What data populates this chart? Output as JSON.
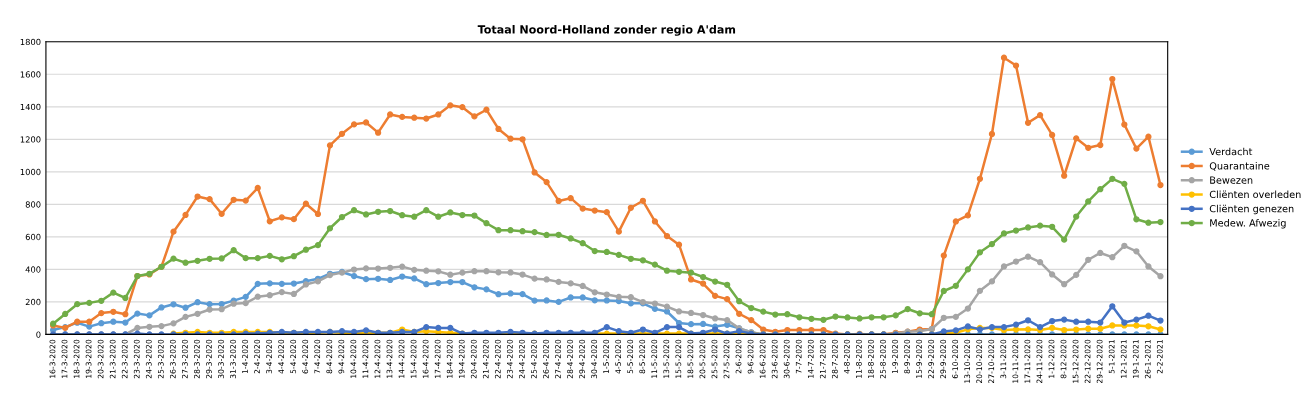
{
  "chart_data": {
    "type": "line",
    "title": "Totaal Noord-Holland zonder regio A'dam",
    "categories": [
      "16-3-2020",
      "17-3-2020",
      "18-3-2020",
      "19-3-2020",
      "20-3-2020",
      "21-3-2020",
      "22-3-2020",
      "23-3-2020",
      "24-3-2020",
      "25-3-2020",
      "26-3-2020",
      "27-3-2020",
      "28-3-2020",
      "29-3-2020",
      "30-3-2020",
      "31-3-2020",
      "1-4-2020",
      "2-4-2020",
      "3-4-2020",
      "4-4-2020",
      "5-4-2020",
      "6-4-2020",
      "7-4-2020",
      "8-4-2020",
      "9-4-2020",
      "10-4-2020",
      "11-4-2020",
      "12-4-2020",
      "13-4-2020",
      "14-4-2020",
      "15-4-2020",
      "16-4-2020",
      "17-4-2020",
      "18-4-2020",
      "19-4-2020",
      "20-4-2020",
      "21-4-2020",
      "22-4-2020",
      "23-4-2020",
      "24-4-2020",
      "25-4-2020",
      "26-4-2020",
      "27-4-2020",
      "28-4-2020",
      "29-4-2020",
      "30-4-2020",
      "1-5-2020",
      "4-5-2020",
      "5-5-2020",
      "8-5-2020",
      "11-5-2020",
      "13-5-2020",
      "15-5-2020",
      "18-5-2020",
      "20-5-2020",
      "25-5-2020",
      "27-5-2020",
      "2-6-2020",
      "9-6-2020",
      "16-6-2020",
      "23-6-2020",
      "30-6-2020",
      "7-7-2020",
      "14-7-2020",
      "21-7-2020",
      "28-7-2020",
      "4-8-2020",
      "11-8-2020",
      "18-8-2020",
      "25-8-2020",
      "1-9-2020",
      "8-9-2020",
      "15-9-2020",
      "22-9-2020",
      "29-9-2020",
      "6-10-2020",
      "13-10-2020",
      "20-10-2020",
      "27-10-2020",
      "3-11-2020",
      "10-11-2020",
      "17-11-2020",
      "24-11-2020",
      "1-12-2020",
      "8-12-2020",
      "15-12-2020",
      "22-12-2020",
      "29-12-2020",
      "5-1-2021",
      "12-1-2021",
      "19-1-2021",
      "26-1-2021",
      "2-2-2021"
    ],
    "series": [
      {
        "name": "Verdacht",
        "color": "#5b9bd5",
        "values": [
          27,
          45,
          72,
          48,
          69,
          78,
          73,
          128,
          117,
          166,
          185,
          164,
          198,
          186,
          187,
          208,
          231,
          311,
          314,
          311,
          313,
          327,
          342,
          373,
          384,
          359,
          340,
          342,
          335,
          356,
          344,
          309,
          316,
          322,
          322,
          290,
          277,
          247,
          252,
          248,
          208,
          209,
          200,
          227,
          227,
          210,
          209,
          205,
          191,
          191,
          157,
          141,
          70,
          63,
          64,
          48,
          59,
          37,
          13,
          0,
          0,
          0,
          0,
          0,
          0,
          0,
          0,
          0,
          0,
          0,
          0,
          0,
          0,
          0,
          0,
          0,
          0,
          0,
          0,
          0,
          0,
          0,
          0,
          0,
          0,
          0,
          0,
          0,
          0,
          0,
          0,
          0,
          0
        ]
      },
      {
        "name": "Quarantaine",
        "color": "#ed7d31",
        "values": [
          55,
          40,
          78,
          78,
          131,
          139,
          124,
          359,
          369,
          416,
          632,
          735,
          848,
          832,
          742,
          828,
          823,
          901,
          696,
          720,
          709,
          804,
          741,
          1163,
          1234,
          1292,
          1304,
          1241,
          1353,
          1338,
          1333,
          1328,
          1353,
          1409,
          1398,
          1341,
          1382,
          1264,
          1204,
          1200,
          996,
          937,
          821,
          838,
          774,
          762,
          752,
          632,
          779,
          822,
          695,
          605,
          552,
          338,
          313,
          237,
          217,
          127,
          88,
          30,
          16,
          27,
          27,
          27,
          27,
          5,
          0,
          3,
          0,
          0,
          10,
          17,
          30,
          33,
          485,
          695,
          732,
          957,
          1233,
          1702,
          1654,
          1302,
          1349,
          1227,
          976,
          1206,
          1148,
          1165,
          1571,
          1291,
          1143,
          1216,
          919
        ]
      },
      {
        "name": "Bewezen",
        "color": "#a5a5a5",
        "values": [
          0,
          0,
          0,
          0,
          0,
          0,
          0,
          40,
          47,
          51,
          68,
          108,
          127,
          153,
          155,
          189,
          193,
          232,
          241,
          260,
          249,
          307,
          326,
          365,
          380,
          399,
          406,
          405,
          410,
          417,
          397,
          392,
          388,
          367,
          380,
          389,
          389,
          382,
          381,
          368,
          343,
          338,
          323,
          314,
          298,
          259,
          245,
          231,
          229,
          199,
          190,
          171,
          141,
          132,
          119,
          98,
          88,
          37,
          13,
          0,
          0,
          0,
          0,
          0,
          0,
          0,
          0,
          0,
          0,
          0,
          5,
          17,
          20,
          33,
          102,
          108,
          159,
          268,
          326,
          418,
          448,
          478,
          444,
          369,
          309,
          366,
          459,
          501,
          475,
          545,
          511,
          418,
          358
        ]
      },
      {
        "name": "Cliënten overleden",
        "color": "#ffc000",
        "values": [
          null,
          null,
          null,
          null,
          null,
          null,
          null,
          null,
          null,
          null,
          5,
          10,
          15,
          10,
          10,
          15,
          15,
          15,
          15,
          10,
          10,
          10,
          10,
          15,
          10,
          10,
          10,
          10,
          10,
          30,
          15,
          20,
          15,
          10,
          5,
          5,
          5,
          5,
          5,
          5,
          5,
          5,
          5,
          5,
          5,
          5,
          5,
          5,
          5,
          5,
          5,
          5,
          5,
          5,
          5,
          5,
          5,
          5,
          5,
          0,
          0,
          0,
          0,
          0,
          0,
          0,
          0,
          0,
          0,
          0,
          0,
          0,
          0,
          0,
          5,
          10,
          31,
          40,
          40,
          27,
          30,
          31,
          27,
          40,
          27,
          30,
          35,
          35,
          55,
          55,
          55,
          50,
          31
        ]
      },
      {
        "name": "Cliënten genezen",
        "color": "#4472c4",
        "values": [
          0,
          0,
          0,
          0,
          0,
          0,
          0,
          5,
          0,
          0,
          0,
          0,
          0,
          0,
          0,
          0,
          5,
          5,
          10,
          15,
          10,
          15,
          15,
          15,
          20,
          15,
          25,
          10,
          10,
          15,
          15,
          45,
          40,
          40,
          5,
          10,
          10,
          10,
          15,
          10,
          5,
          10,
          10,
          10,
          10,
          10,
          45,
          20,
          10,
          30,
          10,
          45,
          45,
          5,
          10,
          30,
          5,
          20,
          5,
          0,
          0,
          0,
          0,
          0,
          0,
          0,
          0,
          0,
          0,
          0,
          0,
          0,
          0,
          0,
          18,
          25,
          49,
          31,
          45,
          45,
          60,
          87,
          45,
          82,
          91,
          78,
          78,
          73,
          173,
          73,
          91,
          115,
          85
        ]
      },
      {
        "name": "Medew. Afwezig",
        "color": "#70ad47",
        "values": [
          66,
          126,
          186,
          194,
          207,
          257,
          224,
          359,
          373,
          416,
          466,
          441,
          453,
          465,
          467,
          518,
          469,
          469,
          483,
          462,
          481,
          521,
          549,
          653,
          722,
          764,
          738,
          754,
          759,
          733,
          724,
          764,
          724,
          750,
          734,
          731,
          684,
          641,
          641,
          635,
          629,
          612,
          613,
          590,
          561,
          513,
          507,
          489,
          465,
          456,
          429,
          392,
          385,
          380,
          353,
          325,
          305,
          204,
          162,
          140,
          122,
          124,
          105,
          96,
          90,
          110,
          104,
          98,
          105,
          105,
          117,
          156,
          130,
          124,
          267,
          299,
          400,
          505,
          556,
          621,
          639,
          658,
          669,
          662,
          583,
          725,
          818,
          893,
          957,
          926,
          708,
          687,
          691
        ]
      }
    ],
    "ylim": [
      0,
      1800
    ],
    "yticks": [
      0,
      200,
      400,
      600,
      800,
      1000,
      1200,
      1400,
      1600,
      1800
    ],
    "grid": "y",
    "legend": "right",
    "marker": "circle",
    "line_style": "solid"
  }
}
